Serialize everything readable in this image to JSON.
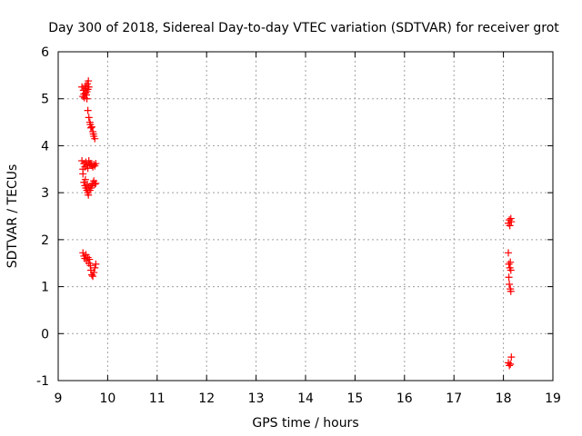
{
  "chart_data": {
    "type": "scatter",
    "title": "Day 300 of 2018, Sidereal Day-to-day VTEC variation (SDTVAR) for receiver grot",
    "xlabel": "GPS time / hours",
    "ylabel": "SDTVAR / TECUs",
    "xlim": [
      9,
      19
    ],
    "ylim": [
      -1,
      6
    ],
    "xticks": [
      "9",
      "10",
      "11",
      "12",
      "13",
      "14",
      "15",
      "16",
      "17",
      "18",
      "19"
    ],
    "yticks": [
      "-1",
      "0",
      "1",
      "2",
      "3",
      "4",
      "5",
      "6"
    ],
    "grid": true,
    "marker": "+",
    "series": [
      {
        "name": "SDTVAR",
        "color": "#ff0000",
        "points": [
          [
            9.48,
            5.25
          ],
          [
            9.5,
            5.05
          ],
          [
            9.51,
            5.18
          ],
          [
            9.52,
            5.1
          ],
          [
            9.53,
            5.02
          ],
          [
            9.54,
            5.22
          ],
          [
            9.55,
            5.12
          ],
          [
            9.56,
            5.28
          ],
          [
            9.57,
            5.08
          ],
          [
            9.58,
            5.15
          ],
          [
            9.59,
            5.32
          ],
          [
            9.6,
            5.2
          ],
          [
            9.61,
            5.38
          ],
          [
            9.62,
            5.25
          ],
          [
            9.58,
            5.0
          ],
          [
            9.6,
            4.75
          ],
          [
            9.62,
            4.6
          ],
          [
            9.64,
            4.5
          ],
          [
            9.65,
            4.45
          ],
          [
            9.66,
            4.38
          ],
          [
            9.68,
            4.4
          ],
          [
            9.7,
            4.3
          ],
          [
            9.71,
            4.25
          ],
          [
            9.72,
            4.2
          ],
          [
            9.74,
            4.15
          ],
          [
            9.48,
            3.68
          ],
          [
            9.5,
            3.5
          ],
          [
            9.52,
            3.62
          ],
          [
            9.54,
            3.55
          ],
          [
            9.56,
            3.65
          ],
          [
            9.58,
            3.58
          ],
          [
            9.6,
            3.52
          ],
          [
            9.62,
            3.68
          ],
          [
            9.64,
            3.6
          ],
          [
            9.66,
            3.62
          ],
          [
            9.68,
            3.58
          ],
          [
            9.7,
            3.55
          ],
          [
            9.72,
            3.6
          ],
          [
            9.74,
            3.57
          ],
          [
            9.76,
            3.62
          ],
          [
            9.5,
            3.4
          ],
          [
            9.52,
            3.22
          ],
          [
            9.54,
            3.15
          ],
          [
            9.55,
            3.28
          ],
          [
            9.56,
            3.1
          ],
          [
            9.58,
            3.05
          ],
          [
            9.59,
            3.18
          ],
          [
            9.6,
            3.0
          ],
          [
            9.61,
            2.95
          ],
          [
            9.62,
            3.12
          ],
          [
            9.64,
            3.05
          ],
          [
            9.66,
            3.1
          ],
          [
            9.68,
            3.15
          ],
          [
            9.7,
            3.2
          ],
          [
            9.72,
            3.25
          ],
          [
            9.74,
            3.18
          ],
          [
            9.76,
            3.2
          ],
          [
            9.5,
            1.72
          ],
          [
            9.52,
            1.65
          ],
          [
            9.54,
            1.6
          ],
          [
            9.56,
            1.68
          ],
          [
            9.58,
            1.55
          ],
          [
            9.6,
            1.62
          ],
          [
            9.62,
            1.5
          ],
          [
            9.63,
            1.58
          ],
          [
            9.65,
            1.45
          ],
          [
            9.66,
            1.35
          ],
          [
            9.68,
            1.25
          ],
          [
            9.7,
            1.22
          ],
          [
            9.72,
            1.3
          ],
          [
            9.74,
            1.4
          ],
          [
            9.76,
            1.48
          ],
          [
            18.1,
            2.35
          ],
          [
            18.12,
            2.42
          ],
          [
            18.13,
            2.3
          ],
          [
            18.15,
            2.45
          ],
          [
            18.16,
            2.38
          ],
          [
            18.1,
            1.72
          ],
          [
            18.11,
            1.48
          ],
          [
            18.13,
            1.4
          ],
          [
            18.14,
            1.52
          ],
          [
            18.15,
            1.35
          ],
          [
            18.11,
            1.2
          ],
          [
            18.12,
            1.05
          ],
          [
            18.14,
            0.95
          ],
          [
            18.15,
            0.9
          ],
          [
            18.1,
            -0.62
          ],
          [
            18.12,
            -0.68
          ],
          [
            18.14,
            -0.65
          ],
          [
            18.16,
            -0.5
          ]
        ]
      }
    ]
  }
}
